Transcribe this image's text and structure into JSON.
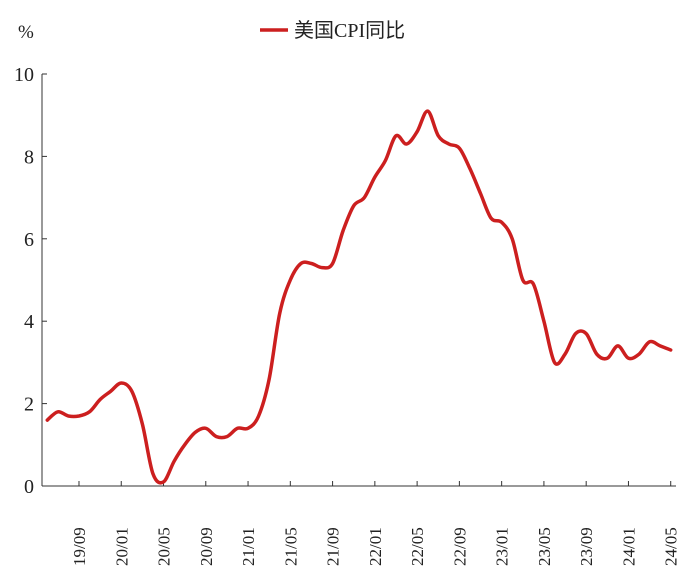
{
  "chart_data": {
    "type": "line",
    "ylabel": "%",
    "ylim": [
      0,
      10
    ],
    "yticks": [
      "0",
      "2",
      "4",
      "6",
      "8",
      "10"
    ],
    "xticks": [
      "19/09",
      "20/01",
      "20/05",
      "20/09",
      "21/01",
      "21/05",
      "21/09",
      "22/01",
      "22/05",
      "22/09",
      "23/01",
      "23/05",
      "23/09",
      "24/01",
      "24/05"
    ],
    "xtick_index": [
      3,
      7,
      11,
      15,
      19,
      23,
      27,
      31,
      35,
      39,
      43,
      47,
      51,
      55,
      59
    ],
    "xlim": [
      -0.5,
      59.5
    ],
    "legend": "top-center",
    "grid": false,
    "series": [
      {
        "name": "美国CPI同比",
        "color": "#cc1f1f",
        "values": [
          1.6,
          1.8,
          1.7,
          1.7,
          1.8,
          2.1,
          2.3,
          2.5,
          2.3,
          1.5,
          0.3,
          0.1,
          0.6,
          1.0,
          1.3,
          1.4,
          1.2,
          1.2,
          1.4,
          1.4,
          1.7,
          2.6,
          4.2,
          5.0,
          5.4,
          5.4,
          5.3,
          5.4,
          6.2,
          6.8,
          7.0,
          7.5,
          7.9,
          8.5,
          8.3,
          8.6,
          9.1,
          8.5,
          8.3,
          8.2,
          7.7,
          7.1,
          6.5,
          6.4,
          6.0,
          5.0,
          4.9,
          4.0,
          3.0,
          3.2,
          3.7,
          3.7,
          3.2,
          3.1,
          3.4,
          3.1,
          3.2,
          3.5,
          3.4,
          3.3
        ]
      }
    ]
  }
}
